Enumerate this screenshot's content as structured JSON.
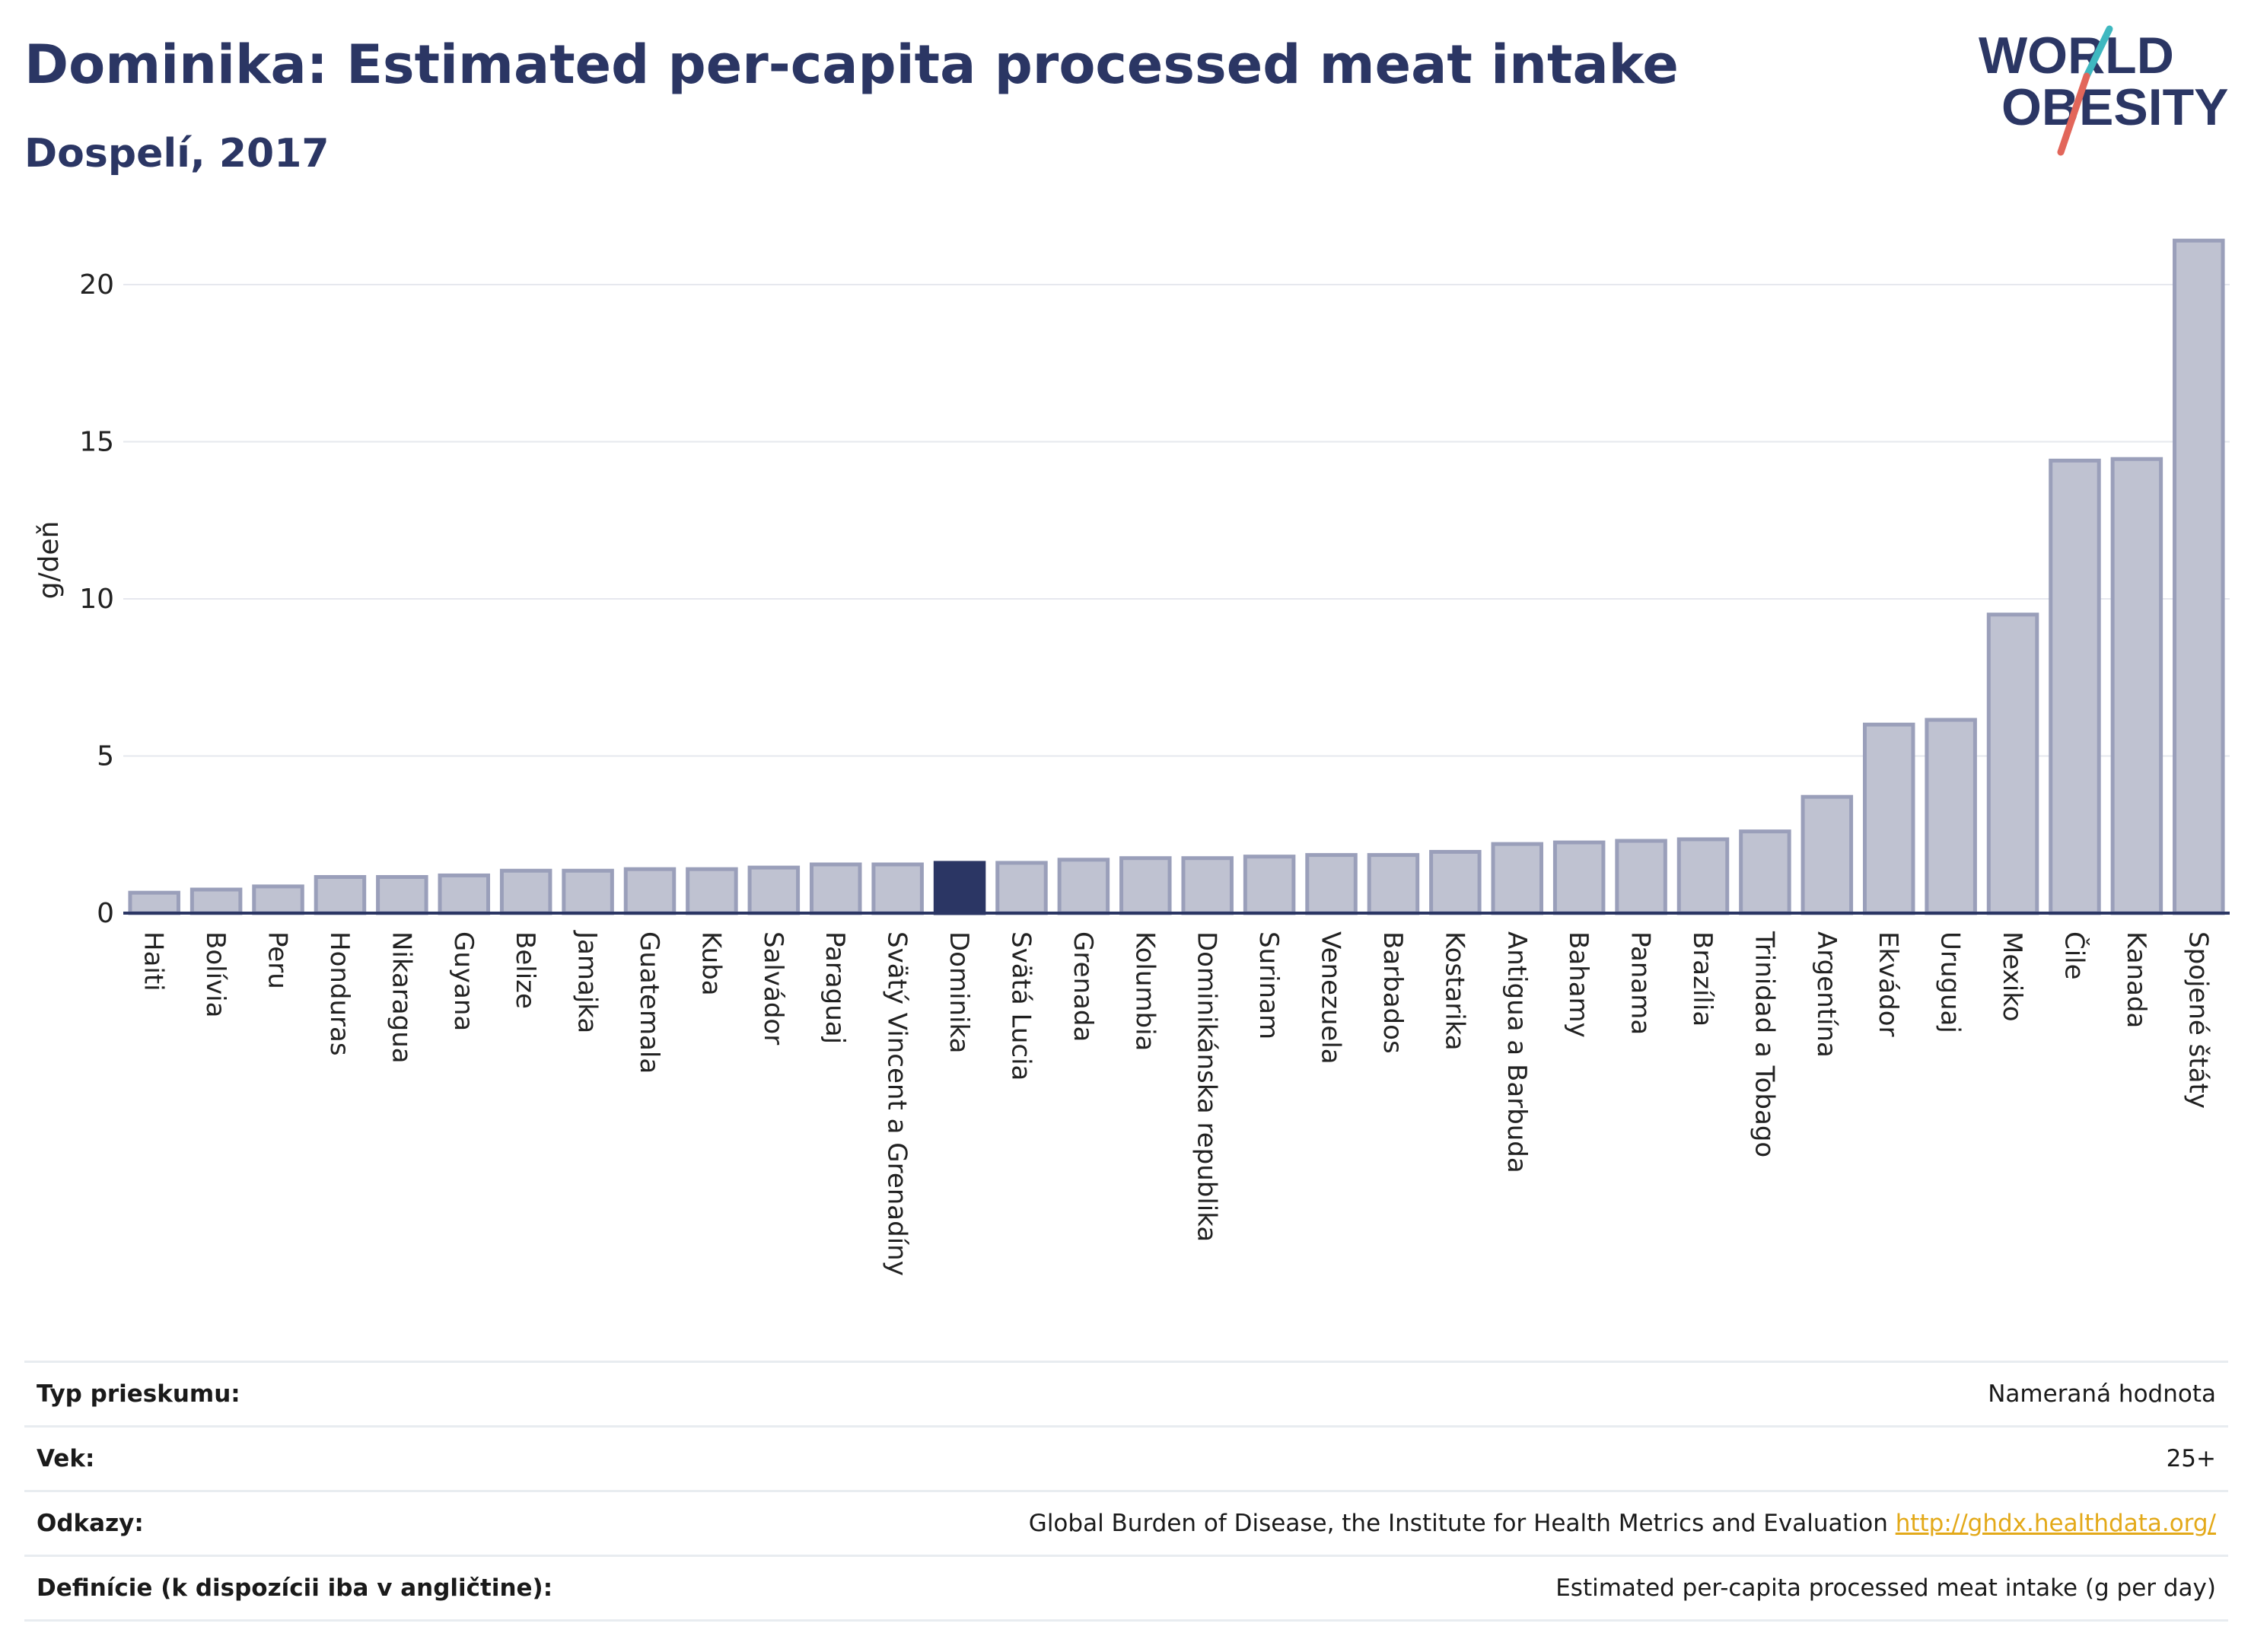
{
  "title": "Dominika: Estimated per-capita processed meat intake",
  "subtitle": "Dospelí, 2017",
  "logo": {
    "line1": "WORLD",
    "line2": "OBESITY"
  },
  "colors": {
    "bar": "#bfc2d1",
    "bar_stroke": "#9a9fba",
    "highlight": "#2b3664",
    "grid": "#e6e8ee",
    "axis": "#2b3664"
  },
  "chart_data": {
    "type": "bar",
    "ylabel": "g/deň",
    "ylim": [
      0,
      22
    ],
    "yticks": [
      0,
      5,
      10,
      15,
      20
    ],
    "grid": true,
    "highlight": "Dominika",
    "categories": [
      "Haiti",
      "Bolívia",
      "Peru",
      "Honduras",
      "Nikaragua",
      "Guyana",
      "Belize",
      "Jamajka",
      "Guatemala",
      "Kuba",
      "Salvádor",
      "Paraguaj",
      "Svätý Vincent a Grenadíny",
      "Dominika",
      "Svätá Lucia",
      "Grenada",
      "Kolumbia",
      "Dominikánska republika",
      "Surinam",
      "Venezuela",
      "Barbados",
      "Kostarika",
      "Antigua a Barbuda",
      "Bahamy",
      "Panama",
      "Brazília",
      "Trinidad a Tobago",
      "Argentína",
      "Ekvádor",
      "Uruguaj",
      "Mexiko",
      "Čile",
      "Kanada",
      "Spojené štáty"
    ],
    "values": [
      0.65,
      0.75,
      0.85,
      1.15,
      1.15,
      1.2,
      1.35,
      1.35,
      1.4,
      1.4,
      1.45,
      1.55,
      1.55,
      1.6,
      1.6,
      1.7,
      1.75,
      1.75,
      1.8,
      1.85,
      1.85,
      1.95,
      2.2,
      2.25,
      2.3,
      2.35,
      2.6,
      3.7,
      6.0,
      6.15,
      9.5,
      14.4,
      14.45,
      21.4
    ]
  },
  "info": [
    {
      "label": "Typ prieskumu:",
      "value": "Nameraná hodnota"
    },
    {
      "label": "Vek:",
      "value": "25+"
    },
    {
      "label": "Odkazy:",
      "value": "Global Burden of Disease, the Institute for Health Metrics and Evaluation",
      "link": "http://ghdx.healthdata.org/"
    },
    {
      "label": "Definície (k dispozícii iba v angličtine):",
      "value": "Estimated per-capita processed meat intake (g per day)"
    }
  ]
}
